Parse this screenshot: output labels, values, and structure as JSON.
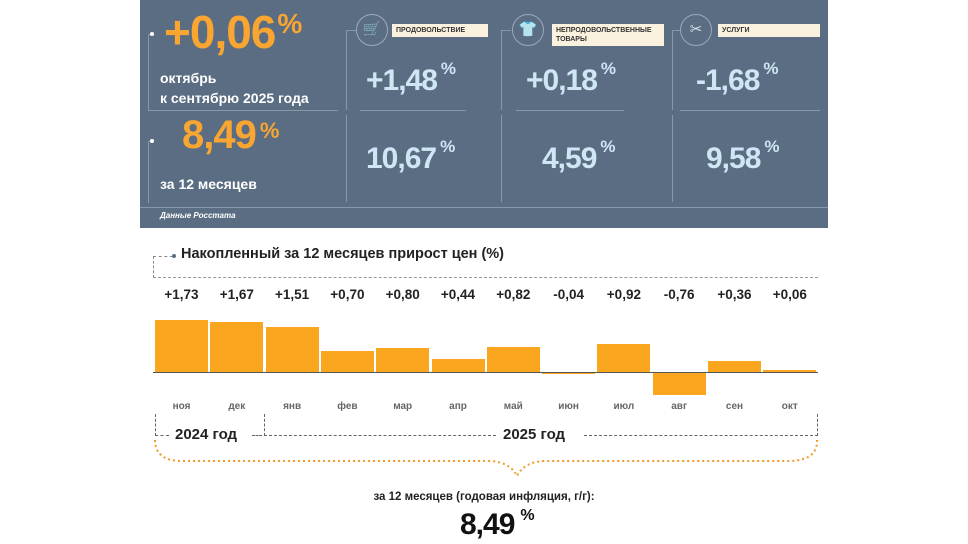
{
  "summary": {
    "monthly": {
      "value": "+0,06",
      "unit": "%",
      "caption_line1": "октябрь",
      "caption_line2": "к сентябрю 2025 года"
    },
    "annual": {
      "value": "8,49",
      "unit": "%",
      "caption": "за 12 месяцев"
    },
    "source": "Данные Росстата",
    "categories": [
      {
        "label": "ПРОДОВОЛЬСТВИЕ",
        "icon": "shopping-cart-icon",
        "monthly": "+1,48",
        "annual": "10,67",
        "unit": "%"
      },
      {
        "label": "НЕПРОДОВОЛЬСТВЕННЫЕ ТОВАРЫ",
        "icon": "clothes-icon",
        "monthly": "+0,18",
        "annual": "4,59",
        "unit": "%"
      },
      {
        "label": "УСЛУГИ",
        "icon": "scissors-icon",
        "monthly": "-1,68",
        "annual": "9,58",
        "unit": "%"
      }
    ]
  },
  "chart_data": {
    "type": "bar",
    "title": "Накопленный за 12 месяцев прирост цен (%)",
    "categories": [
      "ноя",
      "дек",
      "янв",
      "фев",
      "мар",
      "апр",
      "май",
      "июн",
      "июл",
      "авг",
      "сен",
      "окт"
    ],
    "values": [
      1.73,
      1.67,
      1.51,
      0.7,
      0.8,
      0.44,
      0.82,
      -0.04,
      0.92,
      -0.76,
      0.36,
      0.06
    ],
    "value_labels": [
      "+1,73",
      "+1,67",
      "+1,51",
      "+0,70",
      "+0,80",
      "+0,44",
      "+0,82",
      "-0,04",
      "+0,92",
      "-0,76",
      "+0,36",
      "+0,06"
    ],
    "year_groups": [
      "2024 год",
      "2025 год"
    ],
    "footer_caption": "за 12 месяцев (годовая инфляция, г/г):",
    "footer_value": "8,49",
    "footer_unit": "%",
    "bar_color": "#f9a51e"
  }
}
